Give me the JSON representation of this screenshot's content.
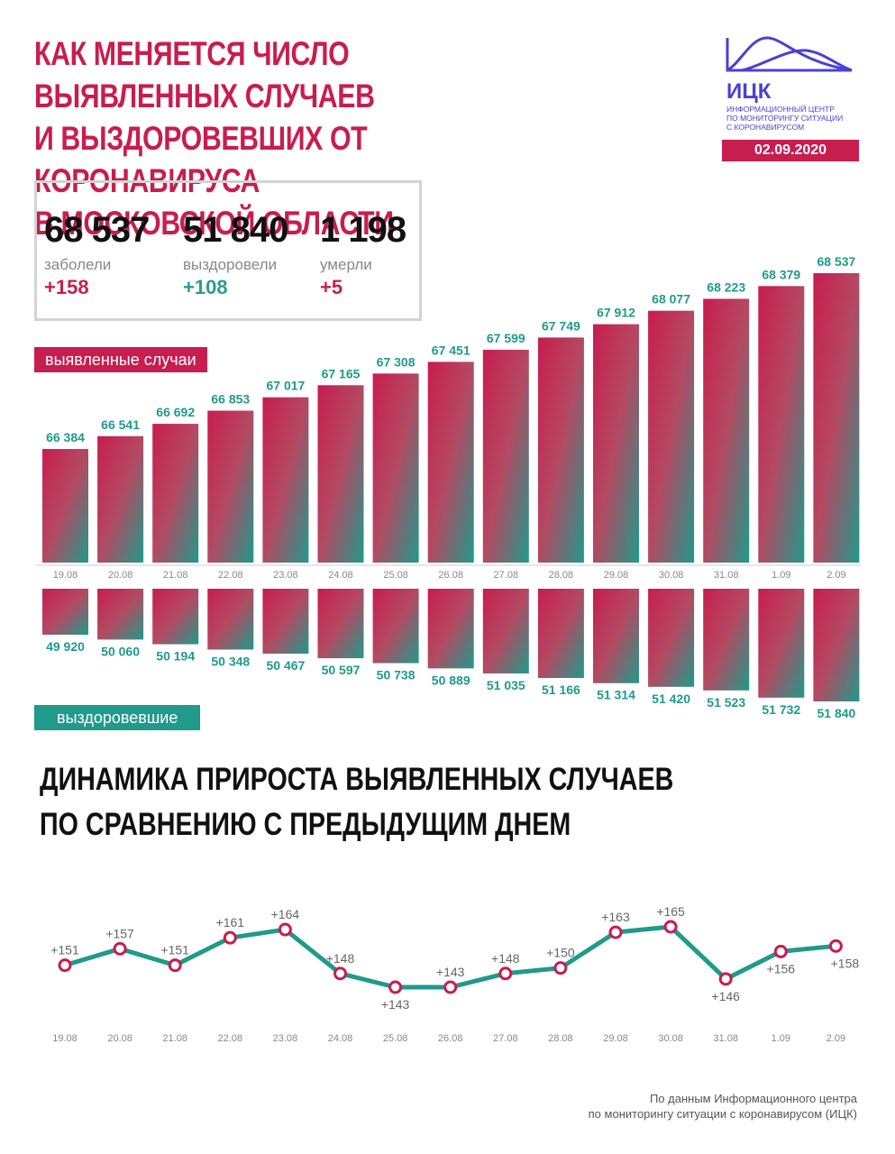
{
  "header": {
    "title_lines": [
      "КАК МЕНЯЕТСЯ ЧИСЛО ВЫЯВЛЕННЫХ СЛУЧАЕВ",
      "И ВЫЗДОРОВЕВШИХ ОТ КОРОНАВИРУСА",
      "В МОСКОВСКОЙ ОБЛАСТИ"
    ],
    "logo_name": "ИЦК",
    "logo_sub": [
      "ИНФОРМАЦИОННЫЙ ЦЕНТР",
      "ПО МОНИТОРИНГУ СИТУАЦИИ",
      "С КОРОНАВИРУСОМ"
    ],
    "date": "02.09.2020"
  },
  "stats": [
    {
      "value": "68 537",
      "label": "заболели",
      "delta": "+158"
    },
    {
      "value": "51 840",
      "label": "выздоровели",
      "delta": "+108"
    },
    {
      "value": "1 198",
      "label": "умерли",
      "delta": "+5"
    }
  ],
  "tags": {
    "cases": "выявленные случаи",
    "recovered": "выздоровевшие"
  },
  "subtitle_lines": [
    "ДИНАМИКА ПРИРОСТА ВЫЯВЛЕННЫХ СЛУЧАЕВ",
    "ПО СРАВНЕНИЮ С ПРЕДЫДУЩИМ ДНЕМ"
  ],
  "footer_lines": [
    "По данным Информационного центра",
    "по мониторингу ситуации с коронавирусом (ИЦК)"
  ],
  "colors": {
    "red": "#c81d4f",
    "green": "#1f9a8b",
    "purple": "#4a40d6"
  },
  "chart_data": [
    {
      "type": "bar",
      "categories": [
        "19.08",
        "20.08",
        "21.08",
        "22.08",
        "23.08",
        "24.08",
        "25.08",
        "26.08",
        "27.08",
        "28.08",
        "29.08",
        "30.08",
        "31.08",
        "1.09",
        "2.09"
      ],
      "series": [
        {
          "name": "выявленные случаи",
          "values": [
            66384,
            66541,
            66692,
            66853,
            67017,
            67165,
            67308,
            67451,
            67599,
            67749,
            67912,
            68077,
            68223,
            68379,
            68537
          ],
          "labels": [
            "66 384",
            "66 541",
            "66 692",
            "66 853",
            "67 017",
            "67 165",
            "67 308",
            "67 451",
            "67 599",
            "67 749",
            "67 912",
            "68 077",
            "68 223",
            "68 379",
            "68 537"
          ]
        },
        {
          "name": "выздоровевшие",
          "values": [
            49920,
            50060,
            50194,
            50348,
            50467,
            50597,
            50738,
            50889,
            51035,
            51166,
            51314,
            51420,
            51523,
            51732,
            51840
          ],
          "labels": [
            "49 920",
            "50 060",
            "50 194",
            "50 348",
            "50 467",
            "50 597",
            "50 738",
            "50 889",
            "51 035",
            "51 166",
            "51 314",
            "51 420",
            "51 523",
            "51 732",
            "51 840"
          ]
        }
      ]
    },
    {
      "type": "line",
      "categories": [
        "19.08",
        "20.08",
        "21.08",
        "22.08",
        "23.08",
        "24.08",
        "25.08",
        "26.08",
        "27.08",
        "28.08",
        "29.08",
        "30.08",
        "31.08",
        "1.09",
        "2.09"
      ],
      "values": [
        151,
        157,
        151,
        161,
        164,
        148,
        143,
        143,
        148,
        150,
        163,
        165,
        146,
        156,
        158
      ],
      "labels": [
        "+151",
        "+157",
        "+151",
        "+161",
        "+164",
        "+148",
        "+143",
        "+143",
        "+148",
        "+150",
        "+163",
        "+165",
        "+146",
        "+156",
        "+158"
      ],
      "label_side": [
        "top",
        "top",
        "top",
        "top",
        "top",
        "top",
        "bottom",
        "top",
        "top",
        "top",
        "top",
        "top",
        "bottom",
        "bottom",
        "bottom"
      ]
    }
  ]
}
